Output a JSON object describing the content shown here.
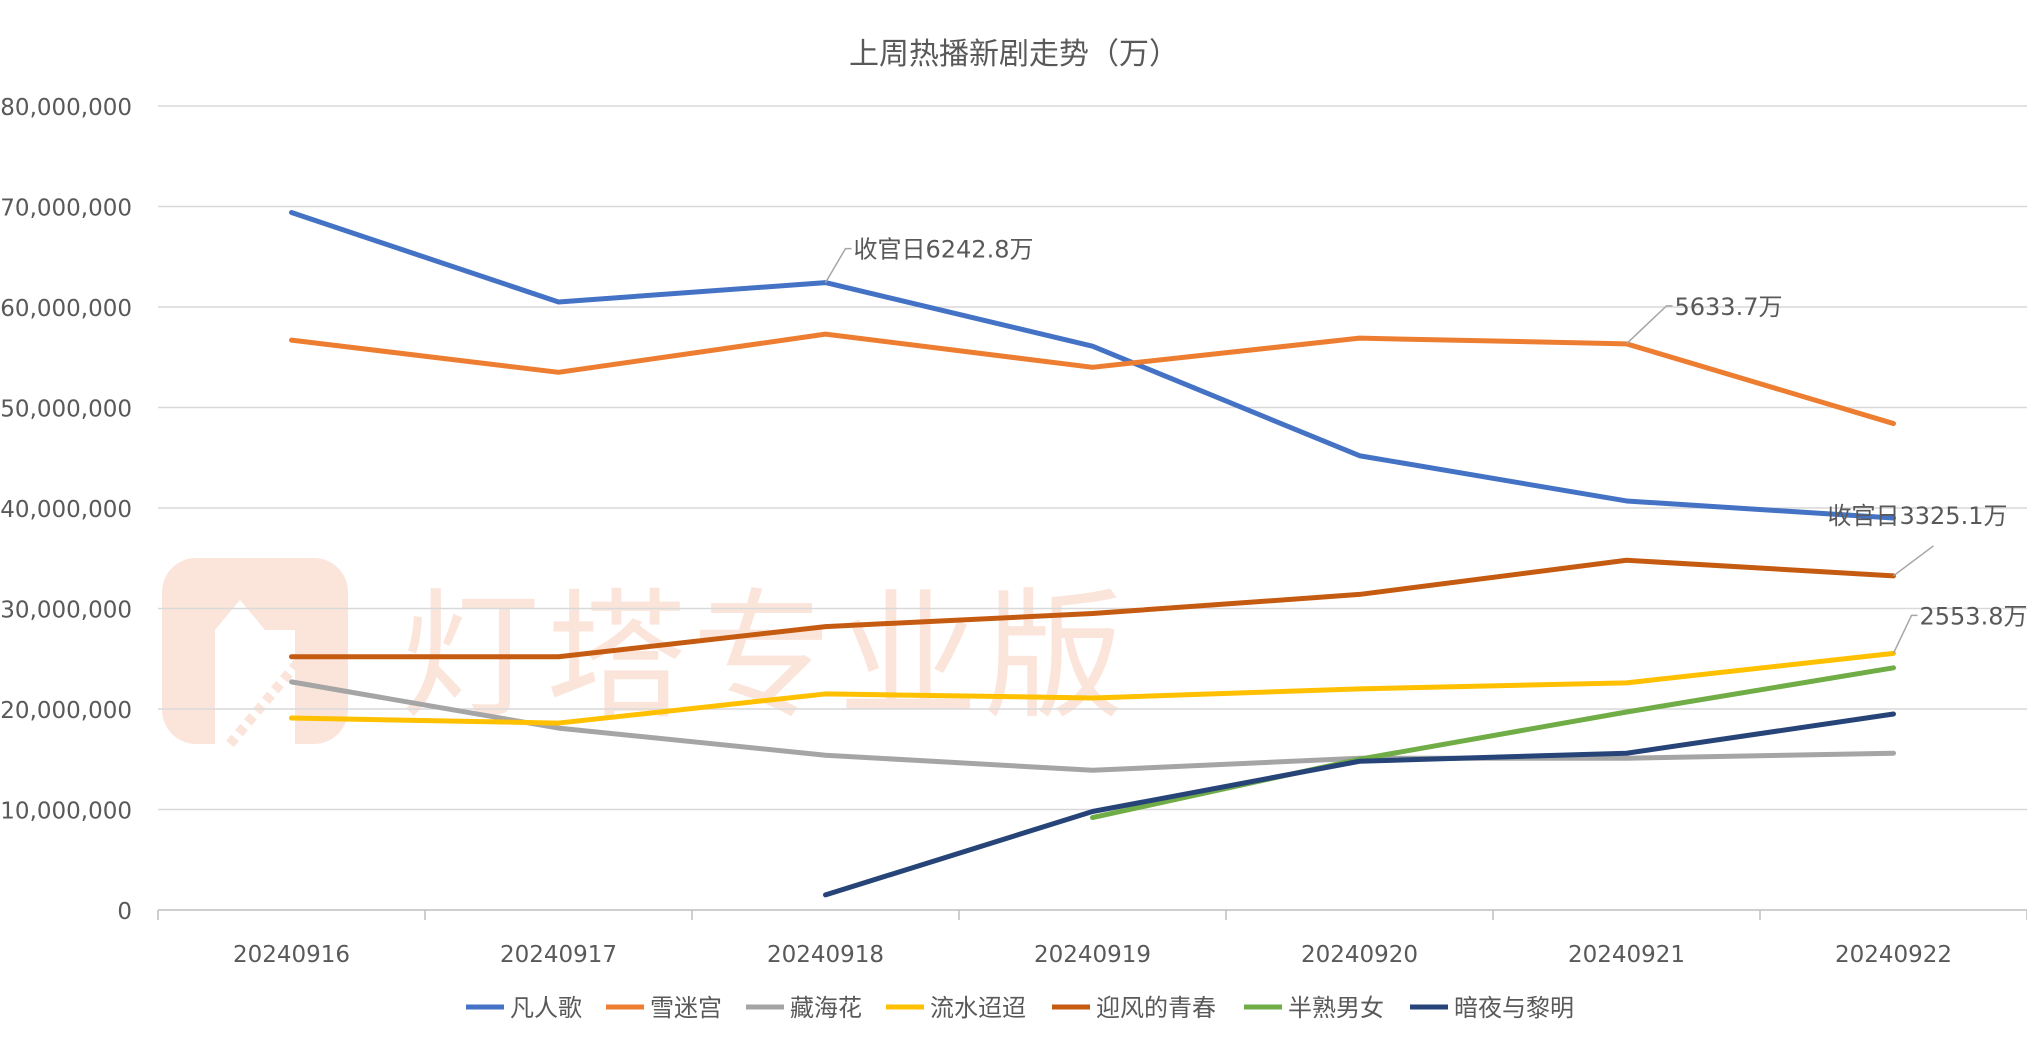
{
  "watermark": "灯塔专业版",
  "chart_data": {
    "type": "line",
    "title": "上周热播新剧走势（万）",
    "xlabel": "",
    "ylabel": "",
    "ylim": [
      0,
      80000000
    ],
    "yticks": [
      0,
      10000000,
      20000000,
      30000000,
      40000000,
      50000000,
      60000000,
      70000000,
      80000000
    ],
    "ytick_labels": [
      "0",
      "10,000,000",
      "20,000,000",
      "30,000,000",
      "40,000,000",
      "50,000,000",
      "60,000,000",
      "70,000,000",
      "80,000,000"
    ],
    "grid": true,
    "legend_position": "bottom",
    "categories": [
      "20240916",
      "20240917",
      "20240918",
      "20240919",
      "20240920",
      "20240921",
      "20240922"
    ],
    "series": [
      {
        "name": "凡人歌",
        "color": "#4472C4",
        "values": [
          69400000,
          60500000,
          62428000,
          56100000,
          45200000,
          40700000,
          39000000
        ]
      },
      {
        "name": "雪迷宫",
        "color": "#ED7D31",
        "values": [
          56700000,
          53500000,
          57300000,
          54000000,
          56900000,
          56337000,
          48400000
        ]
      },
      {
        "name": "藏海花",
        "color": "#A5A5A5",
        "values": [
          22700000,
          18100000,
          15400000,
          13900000,
          15100000,
          15100000,
          15600000
        ]
      },
      {
        "name": "流水迢迢",
        "color": "#FFC000",
        "values": [
          19100000,
          18600000,
          21500000,
          21100000,
          22000000,
          22600000,
          25538000
        ]
      },
      {
        "name": "迎风的青春",
        "color": "#C55A11",
        "values": [
          25200000,
          25200000,
          28200000,
          29500000,
          31400000,
          34800000,
          33251000
        ]
      },
      {
        "name": "半熟男女",
        "color": "#70AD47",
        "values": [
          null,
          null,
          null,
          9200000,
          15000000,
          19700000,
          24100000
        ]
      },
      {
        "name": "暗夜与黎明",
        "color": "#264478",
        "values": [
          null,
          null,
          1500000,
          9800000,
          14800000,
          15600000,
          19500000
        ]
      }
    ],
    "annotations": [
      {
        "text": "收官日6242.8万",
        "series": 0,
        "index": 2
      },
      {
        "text": "5633.7万",
        "series": 1,
        "index": 5
      },
      {
        "text": "收官日3325.1万",
        "series": 4,
        "index": 6
      },
      {
        "text": "2553.8万",
        "series": 3,
        "index": 6
      }
    ]
  }
}
